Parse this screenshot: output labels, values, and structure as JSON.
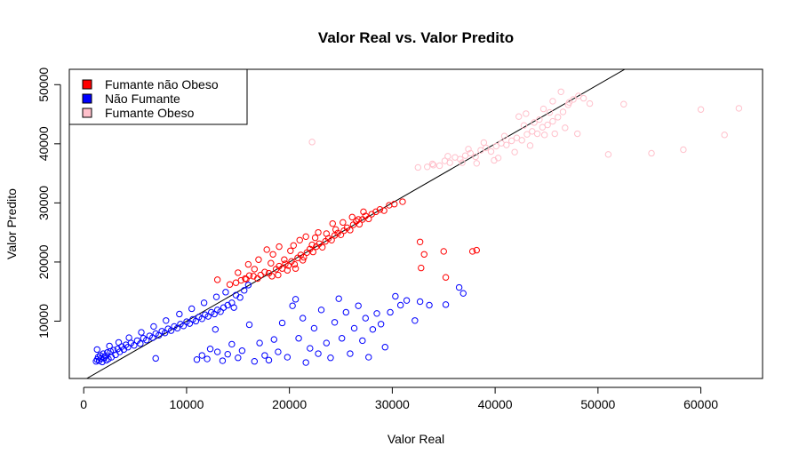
{
  "chart_data": {
    "type": "scatter",
    "title": "Valor Real vs. Valor Predito",
    "xlabel": "Valor Real",
    "ylabel": "Valor Predito",
    "xlim": [
      -1400,
      66000
    ],
    "ylim": [
      300,
      52600
    ],
    "x_ticks": [
      0,
      10000,
      20000,
      30000,
      40000,
      50000,
      60000
    ],
    "y_ticks": [
      10000,
      20000,
      30000,
      40000,
      50000
    ],
    "reference_line": {
      "type": "identity",
      "slope": 1,
      "intercept": 0
    },
    "legend": {
      "position": "top-left",
      "entries": [
        {
          "label": "Fumante não Obeso",
          "color": "#ff0000"
        },
        {
          "label": "Não Fumante",
          "color": "#0000ff"
        },
        {
          "label": "Fumante Obeso",
          "color": "#ffc0cb"
        }
      ]
    },
    "series": [
      {
        "name": "Fumante não Obeso",
        "color": "#ff0000",
        "points": [
          [
            13000,
            17000
          ],
          [
            14200,
            16200
          ],
          [
            14800,
            16500
          ],
          [
            15300,
            16900
          ],
          [
            15700,
            17200
          ],
          [
            16100,
            17700
          ],
          [
            16500,
            17600
          ],
          [
            16900,
            17200
          ],
          [
            17200,
            17800
          ],
          [
            17600,
            18300
          ],
          [
            18000,
            18100
          ],
          [
            18300,
            17600
          ],
          [
            18700,
            18800
          ],
          [
            19000,
            19300
          ],
          [
            19300,
            18900
          ],
          [
            19600,
            19700
          ],
          [
            19900,
            19400
          ],
          [
            20200,
            20100
          ],
          [
            20500,
            19600
          ],
          [
            20800,
            20700
          ],
          [
            21100,
            21200
          ],
          [
            21400,
            20800
          ],
          [
            21700,
            21600
          ],
          [
            22000,
            22200
          ],
          [
            22300,
            21700
          ],
          [
            22600,
            22600
          ],
          [
            22900,
            23100
          ],
          [
            23200,
            22500
          ],
          [
            23500,
            23500
          ],
          [
            23800,
            24000
          ],
          [
            24100,
            23700
          ],
          [
            24400,
            24500
          ],
          [
            24700,
            24900
          ],
          [
            25000,
            24600
          ],
          [
            25300,
            25300
          ],
          [
            25600,
            25800
          ],
          [
            25900,
            25400
          ],
          [
            26200,
            26300
          ],
          [
            26500,
            26900
          ],
          [
            26800,
            26400
          ],
          [
            27100,
            27200
          ],
          [
            27400,
            27800
          ],
          [
            27700,
            27300
          ],
          [
            28000,
            28100
          ],
          [
            28400,
            28500
          ],
          [
            28800,
            28900
          ],
          [
            29200,
            28700
          ],
          [
            29700,
            29600
          ],
          [
            30200,
            29800
          ],
          [
            31000,
            30200
          ],
          [
            17800,
            22100
          ],
          [
            18400,
            21300
          ],
          [
            19000,
            22600
          ],
          [
            19500,
            20400
          ],
          [
            20100,
            21900
          ],
          [
            21000,
            23700
          ],
          [
            21600,
            24300
          ],
          [
            22200,
            22900
          ],
          [
            22800,
            25000
          ],
          [
            23600,
            24800
          ],
          [
            24500,
            25500
          ],
          [
            25200,
            26700
          ],
          [
            26100,
            27600
          ],
          [
            27200,
            28500
          ],
          [
            18200,
            19800
          ],
          [
            19800,
            18600
          ],
          [
            20600,
            18900
          ],
          [
            21300,
            20300
          ],
          [
            16000,
            19600
          ],
          [
            17000,
            20400
          ],
          [
            15000,
            18200
          ],
          [
            15800,
            17100
          ],
          [
            16600,
            18800
          ],
          [
            18900,
            17800
          ],
          [
            20400,
            22800
          ],
          [
            22500,
            24100
          ],
          [
            24200,
            26500
          ],
          [
            26700,
            27200
          ],
          [
            32700,
            23400
          ],
          [
            32800,
            19000
          ],
          [
            33100,
            21300
          ],
          [
            35000,
            21800
          ],
          [
            35200,
            17400
          ],
          [
            37800,
            21800
          ],
          [
            38200,
            22000
          ]
        ]
      },
      {
        "name": "Não Fumante",
        "color": "#0000ff",
        "points": [
          [
            1200,
            3200
          ],
          [
            1300,
            3500
          ],
          [
            1400,
            3900
          ],
          [
            1500,
            3300
          ],
          [
            1600,
            4200
          ],
          [
            1700,
            3700
          ],
          [
            1800,
            3100
          ],
          [
            1900,
            4500
          ],
          [
            2000,
            3800
          ],
          [
            2100,
            4100
          ],
          [
            2200,
            3400
          ],
          [
            2300,
            4700
          ],
          [
            2400,
            3600
          ],
          [
            2600,
            4900
          ],
          [
            2700,
            3900
          ],
          [
            2900,
            5100
          ],
          [
            3100,
            4300
          ],
          [
            3300,
            5300
          ],
          [
            3500,
            4800
          ],
          [
            3700,
            5700
          ],
          [
            3900,
            5200
          ],
          [
            4100,
            6000
          ],
          [
            4300,
            5600
          ],
          [
            4600,
            6300
          ],
          [
            4900,
            5900
          ],
          [
            5200,
            6700
          ],
          [
            5500,
            6200
          ],
          [
            5800,
            7100
          ],
          [
            6100,
            6800
          ],
          [
            6400,
            7500
          ],
          [
            6700,
            7200
          ],
          [
            7000,
            7900
          ],
          [
            7300,
            7600
          ],
          [
            7600,
            8300
          ],
          [
            7900,
            8000
          ],
          [
            8200,
            8700
          ],
          [
            8500,
            8400
          ],
          [
            8800,
            9100
          ],
          [
            9100,
            8800
          ],
          [
            9400,
            9500
          ],
          [
            9700,
            9200
          ],
          [
            10000,
            9900
          ],
          [
            10300,
            9600
          ],
          [
            10600,
            10300
          ],
          [
            10900,
            10000
          ],
          [
            11200,
            10700
          ],
          [
            11500,
            10400
          ],
          [
            11800,
            11100
          ],
          [
            12100,
            10800
          ],
          [
            12400,
            11500
          ],
          [
            12700,
            11200
          ],
          [
            13000,
            11900
          ],
          [
            13300,
            11600
          ],
          [
            13600,
            12300
          ],
          [
            14000,
            12700
          ],
          [
            14400,
            13100
          ],
          [
            14800,
            14400
          ],
          [
            15200,
            14000
          ],
          [
            15600,
            15200
          ],
          [
            16000,
            16100
          ],
          [
            2500,
            5800
          ],
          [
            3400,
            6400
          ],
          [
            4400,
            7200
          ],
          [
            5600,
            8100
          ],
          [
            6800,
            9100
          ],
          [
            8000,
            10100
          ],
          [
            9300,
            11200
          ],
          [
            10500,
            12100
          ],
          [
            11700,
            13100
          ],
          [
            12900,
            14100
          ],
          [
            13800,
            14900
          ],
          [
            1300,
            5200
          ],
          [
            7000,
            3700
          ],
          [
            11000,
            3500
          ],
          [
            11500,
            4200
          ],
          [
            12000,
            3600
          ],
          [
            12300,
            5300
          ],
          [
            12800,
            8600
          ],
          [
            13000,
            4800
          ],
          [
            13500,
            3300
          ],
          [
            14000,
            4400
          ],
          [
            14400,
            6100
          ],
          [
            14600,
            12300
          ],
          [
            15000,
            3800
          ],
          [
            15400,
            5000
          ],
          [
            16100,
            9400
          ],
          [
            16600,
            3200
          ],
          [
            17100,
            6300
          ],
          [
            17600,
            4200
          ],
          [
            18000,
            3400
          ],
          [
            18500,
            6900
          ],
          [
            18900,
            4800
          ],
          [
            19300,
            9700
          ],
          [
            19800,
            3900
          ],
          [
            20300,
            12600
          ],
          [
            20600,
            13700
          ],
          [
            20900,
            7100
          ],
          [
            21300,
            10500
          ],
          [
            21600,
            3000
          ],
          [
            22000,
            5400
          ],
          [
            22400,
            8800
          ],
          [
            22800,
            4500
          ],
          [
            23100,
            11900
          ],
          [
            23600,
            6300
          ],
          [
            24000,
            3800
          ],
          [
            24400,
            9800
          ],
          [
            24800,
            13800
          ],
          [
            25100,
            7100
          ],
          [
            25500,
            11500
          ],
          [
            25900,
            4500
          ],
          [
            26300,
            8800
          ],
          [
            26700,
            12600
          ],
          [
            27100,
            6700
          ],
          [
            27400,
            10500
          ],
          [
            27700,
            3900
          ],
          [
            28100,
            8600
          ],
          [
            28500,
            11300
          ],
          [
            28900,
            9500
          ],
          [
            29300,
            5600
          ],
          [
            29800,
            11500
          ],
          [
            30300,
            14200
          ],
          [
            30800,
            12700
          ],
          [
            31400,
            13500
          ],
          [
            32200,
            10100
          ],
          [
            32700,
            13300
          ],
          [
            33600,
            12700
          ],
          [
            35200,
            12800
          ],
          [
            36500,
            15700
          ],
          [
            36900,
            14700
          ]
        ]
      },
      {
        "name": "Fumante Obeso",
        "color": "#ffc0cb",
        "points": [
          [
            22200,
            40300
          ],
          [
            32500,
            36000
          ],
          [
            33400,
            36100
          ],
          [
            34000,
            36400
          ],
          [
            34600,
            36300
          ],
          [
            35100,
            37100
          ],
          [
            35600,
            36800
          ],
          [
            36100,
            37700
          ],
          [
            36600,
            37400
          ],
          [
            37100,
            38000
          ],
          [
            37600,
            38400
          ],
          [
            38100,
            37800
          ],
          [
            38600,
            38900
          ],
          [
            39100,
            39300
          ],
          [
            39600,
            38700
          ],
          [
            40100,
            39600
          ],
          [
            40600,
            40100
          ],
          [
            41100,
            39800
          ],
          [
            41600,
            40500
          ],
          [
            42100,
            41000
          ],
          [
            42600,
            40600
          ],
          [
            43100,
            41600
          ],
          [
            43600,
            42100
          ],
          [
            44100,
            41700
          ],
          [
            44600,
            42800
          ],
          [
            45100,
            43200
          ],
          [
            45600,
            43800
          ],
          [
            46100,
            44500
          ],
          [
            46600,
            45400
          ],
          [
            47100,
            46600
          ],
          [
            47600,
            47500
          ],
          [
            48100,
            48100
          ],
          [
            48600,
            47700
          ],
          [
            42300,
            44600
          ],
          [
            43000,
            45100
          ],
          [
            43800,
            43600
          ],
          [
            44700,
            45900
          ],
          [
            45600,
            47200
          ],
          [
            46400,
            48800
          ],
          [
            47200,
            47000
          ],
          [
            36800,
            36800
          ],
          [
            38200,
            36700
          ],
          [
            40300,
            37600
          ],
          [
            41900,
            38600
          ],
          [
            43400,
            39700
          ],
          [
            44800,
            41500
          ],
          [
            45800,
            41700
          ],
          [
            46800,
            42700
          ],
          [
            39900,
            37200
          ],
          [
            38900,
            40200
          ],
          [
            37400,
            39100
          ],
          [
            35400,
            37900
          ],
          [
            33900,
            36600
          ],
          [
            45300,
            45300
          ],
          [
            40900,
            41300
          ],
          [
            42800,
            43100
          ],
          [
            44300,
            44100
          ],
          [
            48000,
            41700
          ],
          [
            49200,
            46800
          ],
          [
            51000,
            38200
          ],
          [
            52500,
            46700
          ],
          [
            55200,
            38400
          ],
          [
            58300,
            39000
          ],
          [
            60000,
            45800
          ],
          [
            62300,
            41500
          ],
          [
            63700,
            46000
          ]
        ]
      }
    ]
  }
}
